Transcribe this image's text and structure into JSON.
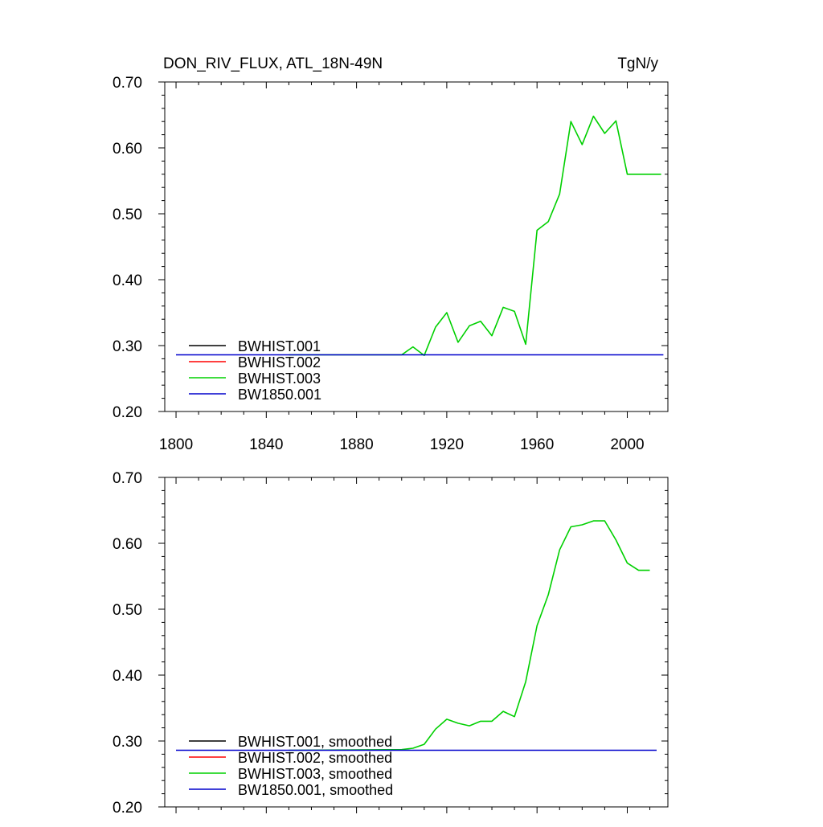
{
  "chart_data": [
    {
      "type": "line",
      "title": "DON_RIV_FLUX, ATL_18N-49N",
      "units": "TgN/y",
      "xlim": [
        1795,
        2018
      ],
      "ylim": [
        0.2,
        0.7
      ],
      "x_ticks": [
        "1800",
        "1840",
        "1880",
        "1920",
        "1960",
        "2000"
      ],
      "y_ticks": [
        "0.20",
        "0.30",
        "0.40",
        "0.50",
        "0.60",
        "0.70"
      ],
      "legend_position": "bottom-left",
      "series": [
        {
          "name": "BWHIST.001",
          "color": "#000000",
          "draw": false,
          "x": [
            1850,
            1900,
            1905,
            1910,
            1915,
            1920,
            1925,
            1930,
            1935,
            1940,
            1945,
            1950,
            1955,
            1960,
            1965,
            1970,
            1975,
            1980,
            1985,
            1990,
            1995,
            2000,
            2005,
            2010,
            2015
          ],
          "y": [
            0.286,
            0.286,
            0.298,
            0.285,
            0.328,
            0.35,
            0.305,
            0.33,
            0.337,
            0.315,
            0.358,
            0.352,
            0.302,
            0.475,
            0.488,
            0.53,
            0.64,
            0.605,
            0.648,
            0.622,
            0.641,
            0.56,
            0.56,
            0.56,
            0.56
          ]
        },
        {
          "name": "BWHIST.002",
          "color": "#ff0000",
          "draw": false,
          "x": [
            1850,
            1900,
            1905,
            1910,
            1915,
            1920,
            1925,
            1930,
            1935,
            1940,
            1945,
            1950,
            1955,
            1960,
            1965,
            1970,
            1975,
            1980,
            1985,
            1990,
            1995,
            2000,
            2005,
            2010,
            2015
          ],
          "y": [
            0.286,
            0.286,
            0.298,
            0.285,
            0.328,
            0.35,
            0.305,
            0.33,
            0.337,
            0.315,
            0.358,
            0.352,
            0.302,
            0.475,
            0.488,
            0.53,
            0.64,
            0.605,
            0.648,
            0.622,
            0.641,
            0.56,
            0.56,
            0.56,
            0.56
          ]
        },
        {
          "name": "BWHIST.003",
          "color": "#00d000",
          "draw": true,
          "x": [
            1850,
            1900,
            1905,
            1910,
            1915,
            1920,
            1925,
            1930,
            1935,
            1940,
            1945,
            1950,
            1955,
            1960,
            1965,
            1970,
            1975,
            1980,
            1985,
            1990,
            1995,
            2000,
            2005,
            2010,
            2015
          ],
          "y": [
            0.286,
            0.286,
            0.298,
            0.285,
            0.328,
            0.35,
            0.305,
            0.33,
            0.337,
            0.315,
            0.358,
            0.352,
            0.302,
            0.475,
            0.488,
            0.53,
            0.64,
            0.605,
            0.648,
            0.622,
            0.641,
            0.56,
            0.56,
            0.56,
            0.56
          ]
        },
        {
          "name": "BW1850.001",
          "color": "#0000cc",
          "draw": true,
          "x": [
            1800,
            2016
          ],
          "y": [
            0.286,
            0.286
          ]
        }
      ]
    },
    {
      "type": "line",
      "title": "",
      "units": "",
      "xlim": [
        1795,
        2018
      ],
      "ylim": [
        0.2,
        0.7
      ],
      "x_ticks": [],
      "y_ticks": [
        "0.20",
        "0.30",
        "0.40",
        "0.50",
        "0.60",
        "0.70"
      ],
      "legend_position": "bottom-left",
      "series": [
        {
          "name": "BWHIST.001, smoothed",
          "color": "#000000",
          "draw": false,
          "x": [
            1850,
            1900,
            1905,
            1910,
            1915,
            1920,
            1925,
            1930,
            1935,
            1940,
            1945,
            1950,
            1955,
            1960,
            1965,
            1970,
            1975,
            1980,
            1985,
            1990,
            1995,
            2000,
            2005,
            2010
          ],
          "y": [
            0.286,
            0.287,
            0.289,
            0.295,
            0.318,
            0.333,
            0.327,
            0.323,
            0.33,
            0.33,
            0.345,
            0.337,
            0.39,
            0.475,
            0.522,
            0.59,
            0.625,
            0.628,
            0.634,
            0.634,
            0.605,
            0.57,
            0.559,
            0.559
          ]
        },
        {
          "name": "BWHIST.002, smoothed",
          "color": "#ff0000",
          "draw": false,
          "x": [
            1850,
            1900,
            1905,
            1910,
            1915,
            1920,
            1925,
            1930,
            1935,
            1940,
            1945,
            1950,
            1955,
            1960,
            1965,
            1970,
            1975,
            1980,
            1985,
            1990,
            1995,
            2000,
            2005,
            2010
          ],
          "y": [
            0.286,
            0.287,
            0.289,
            0.295,
            0.318,
            0.333,
            0.327,
            0.323,
            0.33,
            0.33,
            0.345,
            0.337,
            0.39,
            0.475,
            0.522,
            0.59,
            0.625,
            0.628,
            0.634,
            0.634,
            0.605,
            0.57,
            0.559,
            0.559
          ]
        },
        {
          "name": "BWHIST.003, smoothed",
          "color": "#00d000",
          "draw": true,
          "x": [
            1850,
            1900,
            1905,
            1910,
            1915,
            1920,
            1925,
            1930,
            1935,
            1940,
            1945,
            1950,
            1955,
            1960,
            1965,
            1970,
            1975,
            1980,
            1985,
            1990,
            1995,
            2000,
            2005,
            2010
          ],
          "y": [
            0.286,
            0.287,
            0.289,
            0.295,
            0.318,
            0.333,
            0.327,
            0.323,
            0.33,
            0.33,
            0.345,
            0.337,
            0.39,
            0.475,
            0.522,
            0.59,
            0.625,
            0.628,
            0.634,
            0.634,
            0.605,
            0.57,
            0.559,
            0.559
          ]
        },
        {
          "name": "BW1850.001, smoothed",
          "color": "#0000cc",
          "draw": true,
          "x": [
            1800,
            2013
          ],
          "y": [
            0.286,
            0.286
          ]
        }
      ]
    }
  ]
}
